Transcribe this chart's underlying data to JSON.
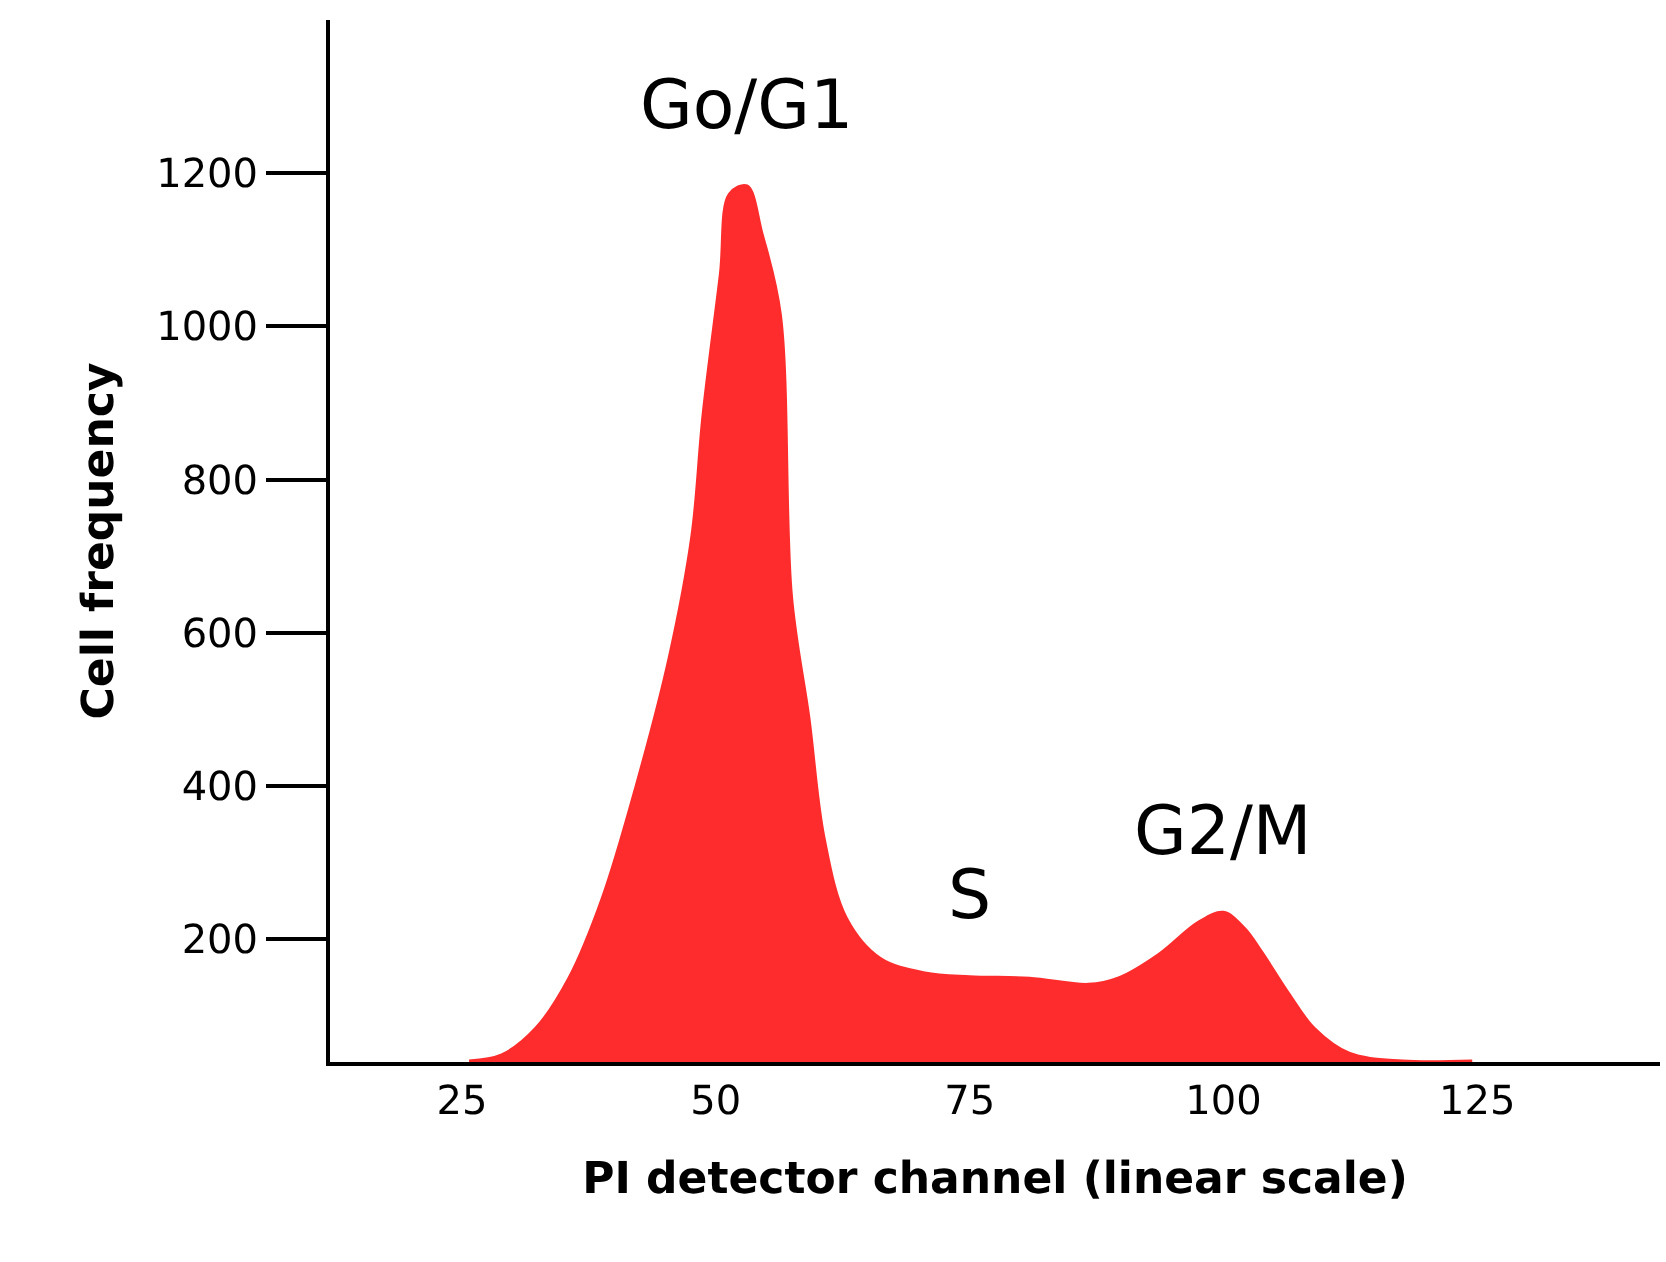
{
  "chart_data": {
    "type": "area",
    "xlabel": "PI detector channel (linear scale)",
    "ylabel": "Cell frequency",
    "x": [
      25.7,
      28.9,
      32.2,
      35.5,
      38.8,
      42.1,
      45.4,
      47.6,
      48.7,
      50.4,
      51.3,
      53.1,
      54.6,
      56.4,
      57.5,
      59.2,
      60.7,
      62.9,
      66.2,
      70.6,
      75,
      80.9,
      86.7,
      89.6,
      93.6,
      97.5,
      100,
      102.1,
      103.8,
      106.4,
      109,
      112.4,
      117.6,
      124.5
    ],
    "series": [
      {
        "color": "#fe2c2c",
        "values": [
          42,
          50,
          84,
          150,
          255,
          400,
          570,
          727,
          885,
          1068,
          1173,
          1184,
          1121,
          1016,
          648,
          491,
          333,
          228,
          176,
          157,
          152,
          150,
          142,
          150,
          181,
          223,
          236,
          215,
          184,
          131,
          84,
          52,
          42,
          42
        ]
      }
    ],
    "xlim": [
      12,
      143
    ],
    "xticks": [
      25,
      50,
      75,
      100,
      125
    ],
    "ylim": [
      40,
      1400
    ],
    "yticks": [
      200,
      400,
      600,
      800,
      1000,
      1200
    ],
    "annotations": [
      {
        "text": "Go/G1",
        "x": 53.1,
        "y": 1184
      },
      {
        "text": "S",
        "x": 75,
        "y": 152
      },
      {
        "text": "G2/M",
        "x": 100,
        "y": 236
      }
    ],
    "grid": false
  }
}
